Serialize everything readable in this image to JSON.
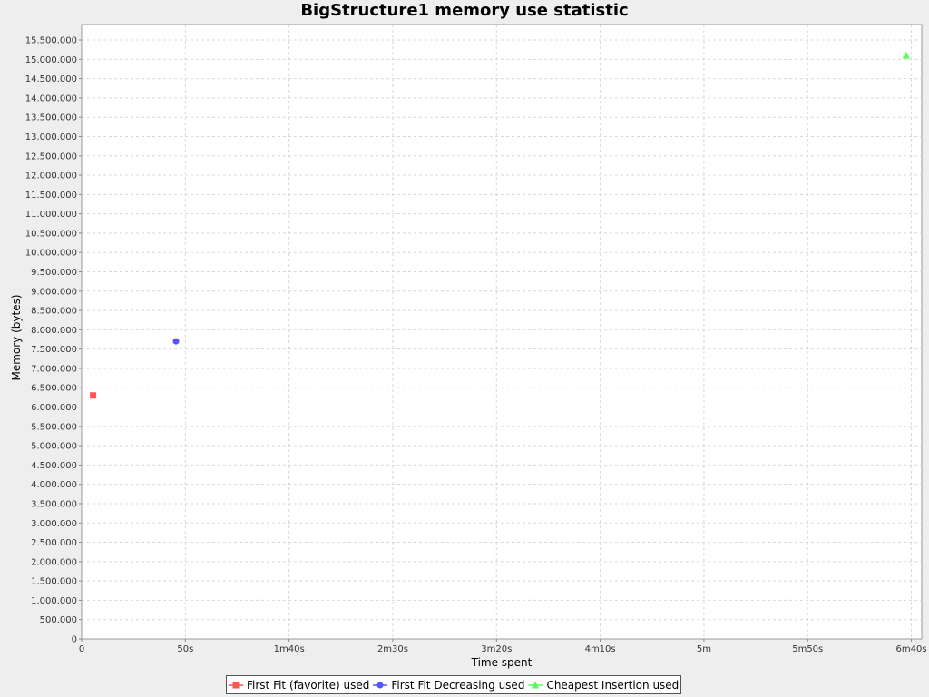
{
  "chart_data": {
    "type": "scatter",
    "title": "BigStructure1 memory use statistic",
    "xlabel": "Time spent",
    "ylabel": "Memory (bytes)",
    "xlim": [
      0,
      405
    ],
    "ylim": [
      0,
      15900000
    ],
    "x_ticks": [
      {
        "value": 0,
        "label": "0"
      },
      {
        "value": 50,
        "label": "50s"
      },
      {
        "value": 100,
        "label": "1m40s"
      },
      {
        "value": 150,
        "label": "2m30s"
      },
      {
        "value": 200,
        "label": "3m20s"
      },
      {
        "value": 250,
        "label": "4m10s"
      },
      {
        "value": 300,
        "label": "5m"
      },
      {
        "value": 350,
        "label": "5m50s"
      },
      {
        "value": 400,
        "label": "6m40s"
      }
    ],
    "y_ticks": [
      {
        "value": 0,
        "label": "0"
      },
      {
        "value": 500000,
        "label": "500.000"
      },
      {
        "value": 1000000,
        "label": "1.000.000"
      },
      {
        "value": 1500000,
        "label": "1.500.000"
      },
      {
        "value": 2000000,
        "label": "2.000.000"
      },
      {
        "value": 2500000,
        "label": "2.500.000"
      },
      {
        "value": 3000000,
        "label": "3.000.000"
      },
      {
        "value": 3500000,
        "label": "3.500.000"
      },
      {
        "value": 4000000,
        "label": "4.000.000"
      },
      {
        "value": 4500000,
        "label": "4.500.000"
      },
      {
        "value": 5000000,
        "label": "5.000.000"
      },
      {
        "value": 5500000,
        "label": "5.500.000"
      },
      {
        "value": 6000000,
        "label": "6.000.000"
      },
      {
        "value": 6500000,
        "label": "6.500.000"
      },
      {
        "value": 7000000,
        "label": "7.000.000"
      },
      {
        "value": 7500000,
        "label": "7.500.000"
      },
      {
        "value": 8000000,
        "label": "8.000.000"
      },
      {
        "value": 8500000,
        "label": "8.500.000"
      },
      {
        "value": 9000000,
        "label": "9.000.000"
      },
      {
        "value": 9500000,
        "label": "9.500.000"
      },
      {
        "value": 10000000,
        "label": "10.000.000"
      },
      {
        "value": 10500000,
        "label": "10.500.000"
      },
      {
        "value": 11000000,
        "label": "11.000.000"
      },
      {
        "value": 11500000,
        "label": "11.500.000"
      },
      {
        "value": 12000000,
        "label": "12.000.000"
      },
      {
        "value": 12500000,
        "label": "12.500.000"
      },
      {
        "value": 13000000,
        "label": "13.000.000"
      },
      {
        "value": 13500000,
        "label": "13.500.000"
      },
      {
        "value": 14000000,
        "label": "14.000.000"
      },
      {
        "value": 14500000,
        "label": "14.500.000"
      },
      {
        "value": 15000000,
        "label": "15.000.000"
      },
      {
        "value": 15500000,
        "label": "15.500.000"
      }
    ],
    "grid": true,
    "legend_position": "bottom-center",
    "series": [
      {
        "name": "First Fit (favorite) used",
        "marker": "square",
        "color": "#ff5555",
        "points": [
          {
            "x": 5.5,
            "y": 6300000
          }
        ]
      },
      {
        "name": "First Fit Decreasing used",
        "marker": "circle",
        "color": "#5555ff",
        "points": [
          {
            "x": 45.5,
            "y": 7700000
          }
        ]
      },
      {
        "name": "Cheapest Insertion used",
        "marker": "triangle",
        "color": "#55ff55",
        "points": [
          {
            "x": 397.5,
            "y": 15100000
          }
        ]
      }
    ]
  }
}
